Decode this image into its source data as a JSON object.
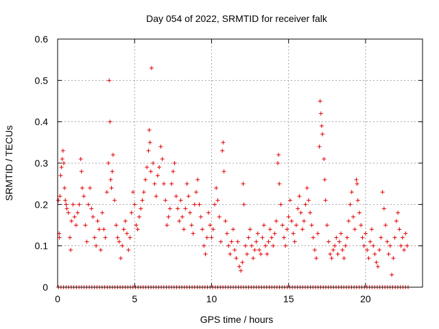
{
  "chart_data": {
    "type": "scatter",
    "title": "Day 054 of 2022, SRMTID for receiver falk",
    "xlabel": "GPS time / hours",
    "ylabel": "SRMTID / TECUs",
    "xlim": [
      0,
      23.7
    ],
    "ylim": [
      0,
      0.6
    ],
    "xticks": [
      0,
      5,
      10,
      15,
      20
    ],
    "xtick_labels": [
      "0",
      "5",
      "10",
      "15",
      "20"
    ],
    "yticks": [
      0,
      0.1,
      0.2,
      0.3,
      0.4,
      0.5,
      0.6
    ],
    "ytick_labels": [
      "0",
      "0.1",
      "0.2",
      "0.3",
      "0.4",
      "0.5",
      "0.6"
    ],
    "grid": true,
    "series": [
      {
        "name": "SRMTID",
        "color": "#e00000",
        "marker": "plus",
        "points": [
          [
            0.05,
            0.21
          ],
          [
            0.1,
            0.13
          ],
          [
            0.12,
            0.12
          ],
          [
            0.15,
            0.22
          ],
          [
            0.2,
            0.27
          ],
          [
            0.25,
            0.29
          ],
          [
            0.3,
            0.31
          ],
          [
            0.35,
            0.33
          ],
          [
            0.4,
            0.3
          ],
          [
            0.45,
            0.24
          ],
          [
            0.5,
            0.21
          ],
          [
            0.55,
            0.2
          ],
          [
            0.6,
            0.19
          ],
          [
            0.7,
            0.18
          ],
          [
            0.8,
            0.12
          ],
          [
            0.85,
            0.09
          ],
          [
            0.9,
            0.16
          ],
          [
            1.0,
            0.2
          ],
          [
            1.1,
            0.17
          ],
          [
            1.2,
            0.15
          ],
          [
            1.3,
            0.18
          ],
          [
            1.4,
            0.2
          ],
          [
            1.5,
            0.31
          ],
          [
            1.55,
            0.28
          ],
          [
            1.6,
            0.24
          ],
          [
            1.7,
            0.22
          ],
          [
            1.8,
            0.15
          ],
          [
            1.9,
            0.11
          ],
          [
            2.0,
            0.2
          ],
          [
            2.1,
            0.24
          ],
          [
            2.2,
            0.19
          ],
          [
            2.3,
            0.17
          ],
          [
            2.4,
            0.12
          ],
          [
            2.5,
            0.1
          ],
          [
            2.6,
            0.16
          ],
          [
            2.7,
            0.14
          ],
          [
            2.8,
            0.09
          ],
          [
            2.9,
            0.18
          ],
          [
            3.0,
            0.14
          ],
          [
            3.1,
            0.12
          ],
          [
            3.2,
            0.23
          ],
          [
            3.3,
            0.3
          ],
          [
            3.35,
            0.5
          ],
          [
            3.4,
            0.4
          ],
          [
            3.45,
            0.26
          ],
          [
            3.5,
            0.24
          ],
          [
            3.55,
            0.28
          ],
          [
            3.6,
            0.32
          ],
          [
            3.7,
            0.21
          ],
          [
            3.8,
            0.15
          ],
          [
            3.9,
            0.12
          ],
          [
            4.0,
            0.11
          ],
          [
            4.1,
            0.07
          ],
          [
            4.2,
            0.1
          ],
          [
            4.3,
            0.14
          ],
          [
            4.4,
            0.16
          ],
          [
            4.5,
            0.13
          ],
          [
            4.6,
            0.09
          ],
          [
            4.7,
            0.12
          ],
          [
            4.8,
            0.18
          ],
          [
            4.9,
            0.23
          ],
          [
            5.0,
            0.2
          ],
          [
            5.1,
            0.15
          ],
          [
            5.2,
            0.14
          ],
          [
            5.3,
            0.17
          ],
          [
            5.4,
            0.19
          ],
          [
            5.5,
            0.21
          ],
          [
            5.6,
            0.23
          ],
          [
            5.7,
            0.26
          ],
          [
            5.8,
            0.29
          ],
          [
            5.9,
            0.33
          ],
          [
            5.95,
            0.38
          ],
          [
            6.0,
            0.35
          ],
          [
            6.05,
            0.28
          ],
          [
            6.1,
            0.53
          ],
          [
            6.2,
            0.3
          ],
          [
            6.3,
            0.25
          ],
          [
            6.4,
            0.22
          ],
          [
            6.5,
            0.27
          ],
          [
            6.6,
            0.29
          ],
          [
            6.7,
            0.34
          ],
          [
            6.8,
            0.31
          ],
          [
            6.9,
            0.25
          ],
          [
            7.0,
            0.21
          ],
          [
            7.1,
            0.15
          ],
          [
            7.2,
            0.17
          ],
          [
            7.3,
            0.19
          ],
          [
            7.4,
            0.25
          ],
          [
            7.5,
            0.28
          ],
          [
            7.6,
            0.3
          ],
          [
            7.7,
            0.22
          ],
          [
            7.8,
            0.19
          ],
          [
            7.9,
            0.16
          ],
          [
            8.0,
            0.21
          ],
          [
            8.1,
            0.17
          ],
          [
            8.2,
            0.14
          ],
          [
            8.3,
            0.19
          ],
          [
            8.4,
            0.25
          ],
          [
            8.5,
            0.22
          ],
          [
            8.6,
            0.18
          ],
          [
            8.7,
            0.15
          ],
          [
            8.8,
            0.13
          ],
          [
            8.9,
            0.2
          ],
          [
            9.0,
            0.23
          ],
          [
            9.1,
            0.26
          ],
          [
            9.2,
            0.2
          ],
          [
            9.3,
            0.17
          ],
          [
            9.4,
            0.14
          ],
          [
            9.5,
            0.1
          ],
          [
            9.6,
            0.08
          ],
          [
            9.7,
            0.12
          ],
          [
            9.8,
            0.18
          ],
          [
            9.9,
            0.15
          ],
          [
            10.0,
            0.12
          ],
          [
            10.1,
            0.14
          ],
          [
            10.2,
            0.2
          ],
          [
            10.3,
            0.24
          ],
          [
            10.4,
            0.21
          ],
          [
            10.5,
            0.17
          ],
          [
            10.6,
            0.11
          ],
          [
            10.7,
            0.33
          ],
          [
            10.75,
            0.35
          ],
          [
            10.8,
            0.28
          ],
          [
            10.9,
            0.16
          ],
          [
            11.0,
            0.13
          ],
          [
            11.1,
            0.1
          ],
          [
            11.2,
            0.08
          ],
          [
            11.3,
            0.11
          ],
          [
            11.4,
            0.14
          ],
          [
            11.5,
            0.09
          ],
          [
            11.6,
            0.07
          ],
          [
            11.7,
            0.11
          ],
          [
            11.8,
            0.05
          ],
          [
            11.9,
            0.04
          ],
          [
            12.0,
            0.06
          ],
          [
            12.05,
            0.25
          ],
          [
            12.1,
            0.2
          ],
          [
            12.2,
            0.1
          ],
          [
            12.3,
            0.08
          ],
          [
            12.4,
            0.12
          ],
          [
            12.5,
            0.14
          ],
          [
            12.6,
            0.1
          ],
          [
            12.7,
            0.07
          ],
          [
            12.8,
            0.09
          ],
          [
            12.9,
            0.11
          ],
          [
            13.0,
            0.13
          ],
          [
            13.1,
            0.09
          ],
          [
            13.2,
            0.08
          ],
          [
            13.3,
            0.12
          ],
          [
            13.4,
            0.15
          ],
          [
            13.5,
            0.1
          ],
          [
            13.6,
            0.08
          ],
          [
            13.7,
            0.11
          ],
          [
            13.8,
            0.14
          ],
          [
            13.9,
            0.12
          ],
          [
            14.0,
            0.1
          ],
          [
            14.1,
            0.13
          ],
          [
            14.2,
            0.16
          ],
          [
            14.3,
            0.3
          ],
          [
            14.35,
            0.32
          ],
          [
            14.4,
            0.25
          ],
          [
            14.5,
            0.2
          ],
          [
            14.6,
            0.15
          ],
          [
            14.7,
            0.12
          ],
          [
            14.8,
            0.1
          ],
          [
            14.9,
            0.14
          ],
          [
            15.0,
            0.17
          ],
          [
            15.1,
            0.21
          ],
          [
            15.2,
            0.16
          ],
          [
            15.3,
            0.13
          ],
          [
            15.4,
            0.11
          ],
          [
            15.5,
            0.15
          ],
          [
            15.6,
            0.19
          ],
          [
            15.7,
            0.22
          ],
          [
            15.8,
            0.18
          ],
          [
            15.9,
            0.14
          ],
          [
            16.0,
            0.16
          ],
          [
            16.1,
            0.2
          ],
          [
            16.2,
            0.24
          ],
          [
            16.3,
            0.21
          ],
          [
            16.4,
            0.18
          ],
          [
            16.5,
            0.15
          ],
          [
            16.6,
            0.12
          ],
          [
            16.7,
            0.09
          ],
          [
            16.8,
            0.07
          ],
          [
            16.9,
            0.13
          ],
          [
            17.0,
            0.34
          ],
          [
            17.05,
            0.45
          ],
          [
            17.1,
            0.42
          ],
          [
            17.15,
            0.39
          ],
          [
            17.2,
            0.37
          ],
          [
            17.3,
            0.31
          ],
          [
            17.35,
            0.26
          ],
          [
            17.4,
            0.21
          ],
          [
            17.5,
            0.15
          ],
          [
            17.6,
            0.11
          ],
          [
            17.7,
            0.08
          ],
          [
            17.8,
            0.07
          ],
          [
            17.9,
            0.09
          ],
          [
            18.0,
            0.1
          ],
          [
            18.1,
            0.12
          ],
          [
            18.2,
            0.08
          ],
          [
            18.3,
            0.11
          ],
          [
            18.4,
            0.13
          ],
          [
            18.5,
            0.09
          ],
          [
            18.6,
            0.07
          ],
          [
            18.7,
            0.1
          ],
          [
            18.8,
            0.12
          ],
          [
            18.9,
            0.16
          ],
          [
            19.0,
            0.2
          ],
          [
            19.1,
            0.23
          ],
          [
            19.2,
            0.17
          ],
          [
            19.3,
            0.14
          ],
          [
            19.4,
            0.26
          ],
          [
            19.45,
            0.25
          ],
          [
            19.5,
            0.21
          ],
          [
            19.6,
            0.18
          ],
          [
            19.7,
            0.15
          ],
          [
            19.8,
            0.12
          ],
          [
            19.9,
            0.1
          ],
          [
            20.0,
            0.13
          ],
          [
            20.1,
            0.09
          ],
          [
            20.2,
            0.07
          ],
          [
            20.3,
            0.11
          ],
          [
            20.4,
            0.14
          ],
          [
            20.5,
            0.1
          ],
          [
            20.6,
            0.08
          ],
          [
            20.7,
            0.06
          ],
          [
            20.8,
            0.05
          ],
          [
            20.9,
            0.09
          ],
          [
            21.0,
            0.12
          ],
          [
            21.1,
            0.23
          ],
          [
            21.2,
            0.19
          ],
          [
            21.3,
            0.15
          ],
          [
            21.4,
            0.11
          ],
          [
            21.5,
            0.08
          ],
          [
            21.6,
            0.1
          ],
          [
            21.7,
            0.03
          ],
          [
            21.8,
            0.07
          ],
          [
            21.9,
            0.12
          ],
          [
            22.0,
            0.16
          ],
          [
            22.1,
            0.18
          ],
          [
            22.2,
            0.14
          ],
          [
            22.3,
            0.1
          ],
          [
            22.4,
            0.12
          ],
          [
            22.5,
            0.09
          ],
          [
            22.6,
            0.13
          ],
          [
            22.7,
            0.1
          ]
        ]
      }
    ],
    "zero_points": {
      "y": 0,
      "x_start": 0.05,
      "x_end": 22.8,
      "x_step": 0.167
    }
  }
}
